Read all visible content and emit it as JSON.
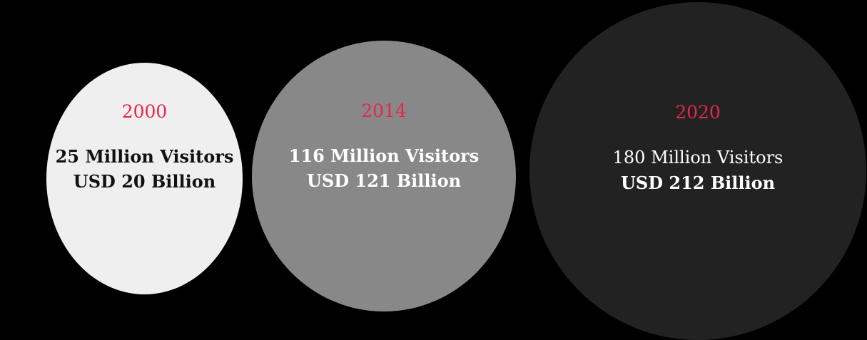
{
  "colors": {
    "background": "#000000",
    "year_accent": "#e8254c",
    "bubble_2000": "#efefef",
    "bubble_2014": "#888888",
    "bubble_2020": "#222222"
  },
  "bubbles": [
    {
      "year": "2000",
      "visitors": "25 Million Visitors",
      "revenue": "USD 20 Billion"
    },
    {
      "year": "2014",
      "visitors": "116 Million Visitors",
      "revenue": "USD 121 Billion"
    },
    {
      "year": "2020",
      "visitors": "180 Million Visitors",
      "revenue": "USD 212 Billion"
    }
  ]
}
